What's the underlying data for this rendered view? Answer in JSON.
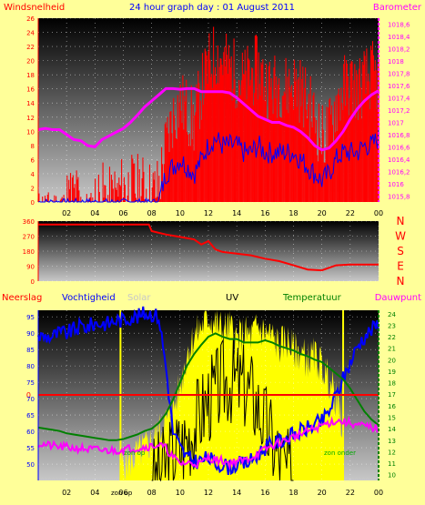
{
  "header": {
    "left_label": "Windsnelheid",
    "title": "24 hour graph day : 01 August 2011",
    "right_label": "Barometer"
  },
  "panel2": {
    "direction_letters": [
      "N",
      "W",
      "S",
      "E",
      "N"
    ]
  },
  "panel3": {
    "labels": {
      "neerslag": "Neerslag",
      "vochtigheid": "Vochtigheid",
      "solar": "Solar",
      "uv": "UV",
      "temperatuur": "Temperatuur",
      "dauwpunt": "Dauwpunt",
      "zon_op_axis": "zon op",
      "zon_op_plot": "zon op",
      "zon_onder": "zon onder",
      "rain_zero": "0"
    }
  },
  "colors": {
    "background": "#ffff99",
    "wind_gust": "#ff0000",
    "wind_avg": "#0000ff",
    "barometer": "#ff00ff",
    "direction": "#ff0000",
    "humidity": "#0000ff",
    "temperature": "#008000",
    "dewpoint": "#ff00ff",
    "solar": "#ffff00",
    "uv": "#000000",
    "rain": "#ff0000"
  },
  "chart_data": [
    {
      "type": "line",
      "title": "24 hour graph day : 01 August 2011",
      "x_ticks": [
        "02",
        "04",
        "06",
        "08",
        "10",
        "12",
        "14",
        "16",
        "18",
        "20",
        "22",
        "00"
      ],
      "x_range_hours": [
        0,
        24
      ],
      "y_left": {
        "label": "Windsnelheid",
        "range": [
          0,
          26
        ],
        "ticks": [
          "0",
          "2",
          "4",
          "6",
          "8",
          "10",
          "12",
          "14",
          "16",
          "18",
          "20",
          "22",
          "24",
          "26"
        ]
      },
      "y_right": {
        "label": "Barometer",
        "range": [
          1015.7,
          1018.7
        ],
        "ticks": [
          "1015,8",
          "1016",
          "1016,2",
          "1016,4",
          "1016,6",
          "1016,8",
          "1017",
          "1017,2",
          "1017,4",
          "1017,6",
          "1017,8",
          "1018",
          "1018,2",
          "1018,4",
          "1018,6"
        ]
      },
      "series": [
        {
          "name": "Windsnelheid",
          "axis": "left",
          "x": [
            0,
            0.5,
            1,
            1.5,
            2,
            2.5,
            3,
            3.5,
            4,
            4.5,
            5,
            5.5,
            6,
            6.5,
            7,
            7.5,
            8,
            8.5,
            9,
            9.5,
            10,
            10.5,
            11,
            11.5,
            12,
            12.5,
            13,
            13.5,
            14,
            14.5,
            15,
            15.5,
            16,
            16.5,
            17,
            17.5,
            18,
            18.5,
            19,
            19.5,
            20,
            20.5,
            21,
            21.5,
            22,
            22.5,
            23,
            23.5,
            24
          ],
          "values": [
            0,
            0,
            0,
            0,
            0,
            1,
            0,
            0,
            0,
            1,
            0,
            1,
            2,
            2,
            2,
            2,
            1,
            2,
            8,
            12,
            14,
            13,
            11,
            16,
            19,
            21,
            20,
            19,
            18,
            17,
            18,
            19,
            17,
            16,
            17,
            16,
            17,
            16,
            14,
            12,
            9,
            10,
            14,
            16,
            17,
            16,
            17,
            18,
            17
          ]
        },
        {
          "name": "Gemiddeld",
          "axis": "left",
          "x": [
            0,
            0.5,
            1,
            1.5,
            2,
            2.5,
            3,
            3.5,
            4,
            4.5,
            5,
            5.5,
            6,
            6.5,
            7,
            7.5,
            8,
            8.5,
            9,
            9.5,
            10,
            10.5,
            11,
            11.5,
            12,
            12.5,
            13,
            13.5,
            14,
            14.5,
            15,
            15.5,
            16,
            16.5,
            17,
            17.5,
            18,
            18.5,
            19,
            19.5,
            20,
            20.5,
            21,
            21.5,
            22,
            22.5,
            23,
            23.5,
            24
          ],
          "values": [
            0,
            0,
            0,
            0,
            0,
            0,
            0,
            0,
            0,
            0,
            0,
            0,
            0,
            0,
            0,
            0,
            0,
            0,
            4,
            5,
            6,
            5,
            4,
            6,
            8,
            9,
            8,
            8,
            8,
            7,
            7,
            8,
            7,
            7,
            7,
            7,
            7,
            6,
            5,
            4,
            3,
            4,
            6,
            7,
            7,
            7,
            8,
            8,
            9
          ]
        },
        {
          "name": "Barometer",
          "axis": "right",
          "x": [
            0,
            0.5,
            1,
            1.5,
            2,
            2.5,
            3,
            3.5,
            4,
            4.5,
            5,
            5.5,
            6,
            6.5,
            7,
            7.5,
            8,
            8.5,
            9,
            9.5,
            10,
            10.5,
            11,
            11.5,
            12,
            12.5,
            13,
            13.5,
            14,
            14.5,
            15,
            15.5,
            16,
            16.5,
            17,
            17.5,
            18,
            18.5,
            19,
            19.5,
            20,
            20.5,
            21,
            21.5,
            22,
            22.5,
            23,
            23.5,
            24
          ],
          "values": [
            1016.88,
            1016.9,
            1016.88,
            1016.88,
            1016.8,
            1016.72,
            1016.7,
            1016.62,
            1016.6,
            1016.72,
            1016.78,
            1016.84,
            1016.9,
            1017.0,
            1017.12,
            1017.25,
            1017.35,
            1017.45,
            1017.55,
            1017.55,
            1017.54,
            1017.55,
            1017.55,
            1017.5,
            1017.5,
            1017.5,
            1017.5,
            1017.48,
            1017.4,
            1017.3,
            1017.2,
            1017.1,
            1017.05,
            1017.0,
            1017.0,
            1016.95,
            1016.92,
            1016.85,
            1016.75,
            1016.62,
            1016.55,
            1016.58,
            1016.7,
            1016.85,
            1017.05,
            1017.22,
            1017.35,
            1017.45,
            1017.52
          ]
        }
      ]
    },
    {
      "type": "line",
      "title": "",
      "x_range_hours": [
        0,
        24
      ],
      "y_left": {
        "label": "",
        "range": [
          0,
          360
        ],
        "ticks": [
          "0",
          "90",
          "180",
          "270",
          "360"
        ]
      },
      "series": [
        {
          "name": "Windrichting",
          "axis": "left",
          "x": [
            0,
            1,
            2,
            3,
            4,
            5,
            6,
            7,
            7.8,
            8,
            9,
            10,
            11,
            11.5,
            12,
            12.5,
            13,
            14,
            15,
            16,
            17,
            18,
            19,
            20,
            20.5,
            21,
            22,
            23,
            24
          ],
          "values": [
            340,
            340,
            340,
            340,
            340,
            340,
            340,
            340,
            340,
            300,
            280,
            265,
            250,
            220,
            240,
            190,
            175,
            165,
            155,
            135,
            120,
            95,
            70,
            65,
            80,
            95,
            100,
            100,
            100
          ]
        }
      ]
    },
    {
      "type": "line",
      "title": "",
      "x_range_hours": [
        0,
        24
      ],
      "y_left": {
        "label": "Vochtigheid",
        "range": [
          45,
          97
        ],
        "ticks": [
          "50",
          "55",
          "60",
          "65",
          "70",
          "75",
          "80",
          "85",
          "90",
          "95"
        ]
      },
      "y_right": {
        "label": "Temperatuur",
        "range": [
          9.5,
          24.3
        ],
        "ticks": [
          "10",
          "11",
          "12",
          "13",
          "14",
          "15",
          "16",
          "17",
          "18",
          "19",
          "20",
          "21",
          "22",
          "23",
          "24"
        ]
      },
      "sunrise_hour": 5.8,
      "sunset_hour": 21.5,
      "series": [
        {
          "name": "Vochtigheid",
          "axis": "left",
          "x": [
            0,
            0.5,
            1,
            1.5,
            2,
            2.5,
            3,
            3.5,
            4,
            4.5,
            5,
            5.5,
            6,
            6.5,
            7,
            7.5,
            8,
            8.5,
            9,
            9.5,
            10,
            10.5,
            11,
            11.5,
            12,
            12.5,
            13,
            13.5,
            14,
            14.5,
            15,
            15.5,
            16,
            16.5,
            17,
            17.5,
            18,
            18.5,
            19,
            19.5,
            20,
            20.5,
            21,
            21.5,
            22,
            22.5,
            23,
            23.5,
            24
          ],
          "values": [
            89,
            89,
            89,
            90,
            90,
            91,
            92,
            92,
            93,
            93,
            93,
            94,
            94,
            95,
            95,
            96,
            96,
            95,
            80,
            60,
            55,
            52,
            51,
            51,
            52,
            50,
            50,
            49,
            50,
            50,
            51,
            53,
            55,
            56,
            57,
            58,
            59,
            60,
            61,
            62,
            63,
            66,
            71,
            76,
            81,
            86,
            89,
            91,
            93
          ]
        },
        {
          "name": "Temperatuur",
          "axis": "right",
          "x": [
            0,
            0.5,
            1,
            1.5,
            2,
            2.5,
            3,
            3.5,
            4,
            4.5,
            5,
            5.5,
            6,
            6.5,
            7,
            7.5,
            8,
            8.5,
            9,
            9.5,
            10,
            10.5,
            11,
            11.5,
            12,
            12.5,
            13,
            13.5,
            14,
            14.5,
            15,
            15.5,
            16,
            16.5,
            17,
            17.5,
            18,
            18.5,
            19,
            19.5,
            20,
            20.5,
            21,
            21.5,
            22,
            22.5,
            23,
            23.5,
            24
          ],
          "values": [
            14.1,
            14.0,
            13.9,
            13.8,
            13.6,
            13.5,
            13.4,
            13.3,
            13.2,
            13.1,
            13.0,
            13.0,
            13.1,
            13.3,
            13.5,
            13.8,
            14.0,
            14.5,
            15.3,
            16.5,
            18.0,
            19.5,
            20.5,
            21.3,
            22.0,
            22.3,
            22.0,
            21.8,
            21.8,
            21.5,
            21.5,
            21.5,
            21.7,
            21.5,
            21.2,
            21.0,
            20.8,
            20.5,
            20.3,
            20.0,
            19.8,
            19.3,
            18.8,
            18.3,
            17.5,
            16.5,
            15.5,
            14.8,
            14.3
          ]
        },
        {
          "name": "Dauwpunt",
          "axis": "right",
          "x": [
            0,
            0.5,
            1,
            1.5,
            2,
            2.5,
            3,
            3.5,
            4,
            4.5,
            5,
            5.5,
            6,
            6.5,
            7,
            7.5,
            8,
            8.5,
            9,
            9.5,
            10,
            10.5,
            11,
            11.5,
            12,
            12.5,
            13,
            13.5,
            14,
            14.5,
            15,
            15.5,
            16,
            16.5,
            17,
            17.5,
            18,
            18.5,
            19,
            19.5,
            20,
            20.5,
            21,
            21.5,
            22,
            22.5,
            23,
            23.5,
            24
          ],
          "values": [
            12.7,
            12.6,
            12.5,
            12.4,
            12.4,
            12.3,
            12.3,
            12.2,
            12.2,
            12.1,
            12.1,
            12.1,
            12.2,
            12.3,
            12.3,
            12.4,
            12.5,
            12.6,
            12.3,
            11.5,
            11.0,
            11.0,
            11.0,
            11.0,
            11.5,
            11.3,
            11.2,
            11.0,
            11.2,
            11.2,
            11.5,
            11.8,
            12.2,
            12.5,
            12.8,
            13.0,
            13.3,
            13.5,
            13.8,
            14.0,
            14.3,
            14.5,
            14.7,
            14.6,
            14.5,
            14.3,
            14.2,
            14.1,
            14.0
          ]
        },
        {
          "name": "Solar",
          "axis": "left",
          "x": [
            5.8,
            6.5,
            7,
            7.5,
            8,
            8.5,
            9,
            9.5,
            10,
            10.5,
            11,
            11.5,
            12,
            12.5,
            13,
            13.5,
            14,
            14.5,
            15,
            15.5,
            16,
            16.5,
            17,
            17.5,
            18,
            18.5,
            19,
            19.5,
            20,
            20.5,
            21,
            21.5
          ],
          "values": [
            50,
            51,
            53,
            55,
            57,
            60,
            63,
            66,
            74,
            84,
            89,
            92,
            95,
            93,
            91,
            92,
            88,
            90,
            89,
            92,
            90,
            89,
            86,
            88,
            85,
            84,
            82,
            83,
            80,
            76,
            70,
            60
          ]
        },
        {
          "name": "UV",
          "axis": "left",
          "x": [
            8,
            8.5,
            9,
            9.5,
            10,
            10.5,
            11,
            11.5,
            12,
            12.5,
            13,
            13.5,
            14,
            14.5,
            15,
            15.5,
            16,
            16.5,
            17,
            17.5,
            18
          ],
          "values": [
            45,
            47,
            50,
            53,
            55,
            58,
            62,
            66,
            70,
            72,
            75,
            76,
            75,
            74,
            72,
            68,
            62,
            57,
            52,
            48,
            45
          ]
        }
      ]
    }
  ]
}
